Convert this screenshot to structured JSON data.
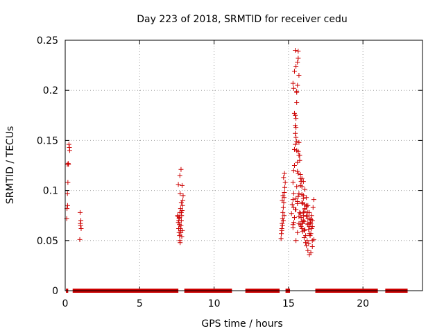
{
  "chart_data": {
    "type": "scatter",
    "title": "Day 223 of 2018, SRMTID for receiver cedu",
    "xlabel": "GPS time / hours",
    "ylabel": "SRMTID / TECUs",
    "xlim": [
      0,
      24
    ],
    "ylim": [
      0,
      0.25
    ],
    "xticks": [
      0,
      5,
      10,
      15,
      20
    ],
    "xtick_labels": [
      "0",
      "5",
      "10",
      "15",
      "20"
    ],
    "yticks": [
      0,
      0.05,
      0.1,
      0.15,
      0.2,
      0.25
    ],
    "ytick_labels": [
      "0",
      "0.05",
      "0.1",
      "0.15",
      "0.2",
      "0.25"
    ],
    "grid": true,
    "marker": "+",
    "colors": {
      "series": "#cc0000",
      "grid": "#a0a0a0",
      "axis": "#000000"
    },
    "zero_segments": [
      [
        0.05,
        0.2
      ],
      [
        0.5,
        7.6
      ],
      [
        8.0,
        11.2
      ],
      [
        12.1,
        14.4
      ],
      [
        14.8,
        15.1
      ],
      [
        16.8,
        21.0
      ],
      [
        21.5,
        23.0
      ]
    ],
    "series": [
      {
        "name": "SRMTID",
        "x": [
          0.1,
          0.12,
          0.15,
          0.18,
          0.2,
          0.22,
          0.25,
          0.28,
          0.3,
          0.14,
          0.16,
          1.0,
          1.02,
          1.05,
          1.07,
          0.98,
          1.03,
          7.55,
          7.6,
          7.62,
          7.65,
          7.68,
          7.7,
          7.72,
          7.75,
          7.78,
          7.8,
          7.82,
          7.85,
          7.88,
          7.9,
          7.65,
          7.7,
          7.75,
          7.8,
          7.58,
          7.63,
          7.67,
          7.73,
          7.77,
          7.83,
          7.87,
          7.92,
          7.6,
          7.7,
          7.78,
          7.85,
          7.72,
          7.8,
          7.66,
          14.5,
          14.52,
          14.55,
          14.57,
          14.6,
          14.62,
          14.65,
          14.68,
          14.7,
          14.72,
          14.75,
          14.78,
          14.55,
          14.6,
          14.65,
          14.7,
          14.58,
          14.63,
          14.67,
          14.73,
          15.2,
          15.25,
          15.3,
          15.35,
          15.4,
          15.45,
          15.5,
          15.55,
          15.3,
          15.35,
          15.4,
          15.45,
          15.5,
          15.55,
          15.6,
          15.65,
          15.3,
          15.35,
          15.4,
          15.45,
          15.5,
          15.55,
          15.6,
          15.65,
          15.7,
          15.4,
          15.45,
          15.5,
          15.55,
          15.6,
          15.65,
          15.7,
          15.75,
          15.8,
          15.85,
          15.9,
          15.95,
          16.0,
          16.05,
          16.1,
          15.3,
          15.35,
          15.45,
          15.55,
          15.65,
          15.75,
          15.85,
          15.95,
          16.05,
          16.15,
          15.6,
          15.7,
          15.8,
          15.9,
          16.0,
          16.1,
          16.2,
          16.3,
          15.5,
          15.6,
          15.7,
          15.8,
          15.9,
          16.0,
          16.1,
          16.2,
          16.3,
          16.4,
          15.9,
          16.0,
          16.1,
          16.2,
          16.3,
          16.4,
          16.5,
          16.6,
          15.3,
          15.4,
          15.5,
          15.6,
          15.7,
          15.8,
          15.9,
          16.0,
          16.1,
          16.2,
          16.3,
          16.4,
          16.5,
          16.6,
          16.2,
          16.3,
          16.4,
          16.5,
          16.6,
          16.7,
          16.35,
          16.45,
          16.55,
          16.65,
          15.85,
          15.95,
          16.05,
          16.15,
          16.25,
          16.35,
          16.45,
          16.55,
          15.45,
          15.55,
          15.65,
          15.75,
          15.35,
          15.5,
          15.6,
          15.7,
          15.8,
          15.9,
          16.0,
          16.1,
          16.2,
          16.3,
          16.4,
          16.5,
          16.6,
          16.7
        ],
        "y": [
          0.072,
          0.082,
          0.097,
          0.108,
          0.127,
          0.126,
          0.146,
          0.143,
          0.14,
          0.126,
          0.085,
          0.078,
          0.067,
          0.07,
          0.062,
          0.051,
          0.065,
          0.075,
          0.068,
          0.062,
          0.058,
          0.055,
          0.05,
          0.048,
          0.06,
          0.065,
          0.07,
          0.075,
          0.08,
          0.085,
          0.09,
          0.072,
          0.078,
          0.082,
          0.078,
          0.074,
          0.07,
          0.066,
          0.062,
          0.058,
          0.054,
          0.06,
          0.095,
          0.106,
          0.115,
          0.121,
          0.105,
          0.097,
          0.088,
          0.073,
          0.052,
          0.057,
          0.062,
          0.067,
          0.072,
          0.078,
          0.083,
          0.088,
          0.093,
          0.098,
          0.103,
          0.108,
          0.06,
          0.065,
          0.07,
          0.075,
          0.09,
          0.095,
          0.113,
          0.117,
          0.077,
          0.086,
          0.108,
          0.12,
          0.141,
          0.165,
          0.172,
          0.198,
          0.091,
          0.097,
          0.125,
          0.146,
          0.163,
          0.188,
          0.205,
          0.232,
          0.207,
          0.202,
          0.219,
          0.24,
          0.224,
          0.199,
          0.228,
          0.239,
          0.215,
          0.177,
          0.175,
          0.153,
          0.14,
          0.128,
          0.117,
          0.148,
          0.135,
          0.112,
          0.109,
          0.096,
          0.087,
          0.078,
          0.069,
          0.061,
          0.063,
          0.068,
          0.081,
          0.104,
          0.094,
          0.078,
          0.064,
          0.059,
          0.053,
          0.048,
          0.119,
          0.135,
          0.116,
          0.104,
          0.092,
          0.082,
          0.074,
          0.067,
          0.05,
          0.058,
          0.067,
          0.077,
          0.088,
          0.095,
          0.086,
          0.075,
          0.066,
          0.057,
          0.062,
          0.07,
          0.079,
          0.085,
          0.072,
          0.064,
          0.057,
          0.05,
          0.066,
          0.073,
          0.081,
          0.089,
          0.097,
          0.105,
          0.112,
          0.109,
          0.101,
          0.093,
          0.085,
          0.078,
          0.071,
          0.064,
          0.045,
          0.04,
          0.036,
          0.038,
          0.044,
          0.051,
          0.061,
          0.068,
          0.075,
          0.083,
          0.073,
          0.067,
          0.06,
          0.055,
          0.05,
          0.047,
          0.055,
          0.062,
          0.157,
          0.149,
          0.139,
          0.13,
          0.083,
          0.092,
          0.087,
          0.074,
          0.066,
          0.069,
          0.075,
          0.081,
          0.084,
          0.078,
          0.072,
          0.067,
          0.07,
          0.091
        ]
      }
    ]
  }
}
